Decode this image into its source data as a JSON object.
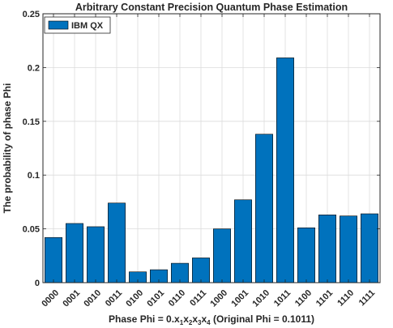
{
  "chart_data": {
    "type": "bar",
    "title": "Arbitrary Constant Precision Quantum Phase Estimation",
    "xlabel": "Phase Phi = 0.x1x2x3x4 (Original Phi = 0.1011)",
    "xlabel_parts": {
      "prefix": "Phase Phi = 0.",
      "digits": [
        "x",
        "x",
        "x",
        "x"
      ],
      "subscripts": [
        "1",
        "2",
        "3",
        "4"
      ],
      "suffix": " (Original Phi = 0.1011)"
    },
    "ylabel": "The probability of phase Phi",
    "categories": [
      "0000",
      "0001",
      "0010",
      "0011",
      "0100",
      "0101",
      "0110",
      "0111",
      "1000",
      "1001",
      "1010",
      "1011",
      "1100",
      "1101",
      "1110",
      "1111"
    ],
    "series": [
      {
        "name": "IBM QX",
        "color": "#0072BD",
        "values": [
          0.042,
          0.055,
          0.052,
          0.074,
          0.01,
          0.012,
          0.018,
          0.023,
          0.05,
          0.077,
          0.138,
          0.209,
          0.051,
          0.063,
          0.062,
          0.064
        ]
      }
    ],
    "ylim": [
      0,
      0.25
    ],
    "yticks": [
      0,
      0.05,
      0.1,
      0.15,
      0.2,
      0.25
    ],
    "ytick_labels": [
      "0",
      "0.05",
      "0.1",
      "0.15",
      "0.2",
      "0.25"
    ],
    "grid": true,
    "legend": "top-left"
  }
}
